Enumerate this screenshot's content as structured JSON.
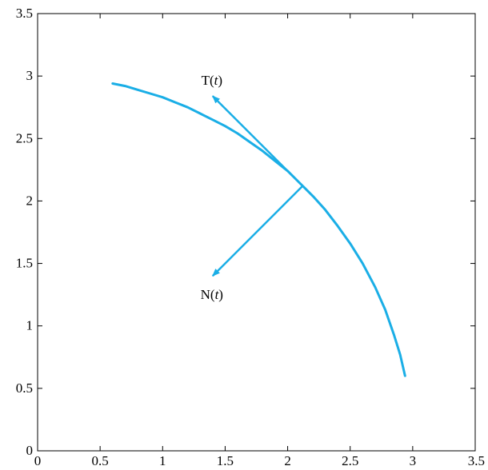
{
  "chart_data": {
    "type": "line",
    "title": "",
    "xlabel": "",
    "ylabel": "",
    "xlim": [
      0,
      3.5
    ],
    "ylim": [
      0,
      3.5
    ],
    "xticks": [
      "0",
      "0.5",
      "1",
      "1.5",
      "2",
      "2.5",
      "3",
      "3.5"
    ],
    "yticks": [
      "0",
      "0.5",
      "1",
      "1.5",
      "2",
      "2.5",
      "3",
      "3.5"
    ],
    "grid": false,
    "legend": "none",
    "series": [
      {
        "curve": "circle arc x = 3cos(t), y = 3sin(t)",
        "x": [
          2.939,
          2.9,
          2.85,
          2.78,
          2.7,
          2.6,
          2.5,
          2.4,
          2.3,
          2.21,
          2.1,
          2.0,
          1.9,
          1.8,
          1.7,
          1.6,
          1.5,
          1.4,
          1.3,
          1.2,
          1.1,
          1.0,
          0.9,
          0.8,
          0.7,
          0.6
        ],
        "y": [
          0.6,
          0.77,
          0.93,
          1.13,
          1.31,
          1.5,
          1.66,
          1.8,
          1.93,
          2.03,
          2.14,
          2.24,
          2.32,
          2.4,
          2.47,
          2.54,
          2.6,
          2.65,
          2.7,
          2.75,
          2.79,
          2.83,
          2.86,
          2.89,
          2.92,
          2.94
        ],
        "color": "#1aaee6"
      }
    ],
    "vectors": [
      {
        "label": "T",
        "var": "t",
        "from": [
          2.12,
          2.12
        ],
        "to": [
          1.4,
          2.84
        ],
        "color": "#1aaee6"
      },
      {
        "label": "N",
        "var": "t",
        "from": [
          2.12,
          2.12
        ],
        "to": [
          1.4,
          1.4
        ],
        "color": "#1aaee6"
      }
    ]
  }
}
